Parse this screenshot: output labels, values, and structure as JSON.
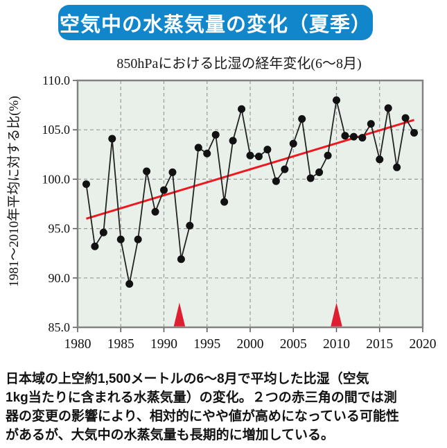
{
  "banner": {
    "text": "空気中の水蒸気量の変化（夏季）",
    "bg_color": "#1186cb",
    "text_color": "#ffffff"
  },
  "chart_data": {
    "type": "line",
    "title": "850hPaにおける比湿の経年変化(6～8月)",
    "ylabel": "1981～2010年平均に対する比(%)",
    "xlabel": "",
    "xlim": [
      1980,
      2020
    ],
    "ylim": [
      85.0,
      110.0
    ],
    "x_ticks": [
      1980,
      1985,
      1990,
      1995,
      2000,
      2005,
      2010,
      2015,
      2020
    ],
    "y_ticks": [
      85.0,
      90.0,
      95.0,
      100.0,
      105.0,
      110.0
    ],
    "grid": true,
    "legend": "none",
    "series": [
      {
        "name": "specific-humidity-ratio",
        "x": [
          1981,
          1982,
          1983,
          1984,
          1985,
          1986,
          1987,
          1988,
          1989,
          1990,
          1991,
          1992,
          1993,
          1994,
          1995,
          1996,
          1997,
          1998,
          1999,
          2000,
          2001,
          2002,
          2003,
          2004,
          2005,
          2006,
          2007,
          2008,
          2009,
          2010,
          2011,
          2012,
          2013,
          2014,
          2015,
          2016,
          2017,
          2018,
          2019
        ],
        "values": [
          99.5,
          93.2,
          94.6,
          104.1,
          93.9,
          89.4,
          93.9,
          100.8,
          96.7,
          98.9,
          100.7,
          91.9,
          95.3,
          103.2,
          102.6,
          104.5,
          97.7,
          103.9,
          107.1,
          102.4,
          102.3,
          103.0,
          99.8,
          101.0,
          103.6,
          106.1,
          100.1,
          100.7,
          102.4,
          108.0,
          104.4,
          104.3,
          104.2,
          105.6,
          102.0,
          107.2,
          101.2,
          106.2,
          104.7
        ]
      }
    ],
    "trend_line": {
      "x": [
        1981,
        2019
      ],
      "values": [
        96.0,
        106.0
      ],
      "color": "#ef1820"
    },
    "markers": {
      "shape": "triangle-up",
      "meaning": "red triangles marking instrument-change period boundaries",
      "x": [
        1991.8,
        2010.0
      ],
      "apex_value": 87.5,
      "base_value": 85.1,
      "color": "#dd1f31"
    },
    "colors": {
      "point": "#111111",
      "line": "#222222",
      "plot_bg": "#e9f0e9",
      "grid": "#9a9a9a",
      "border": "#828282",
      "tick": "#555555",
      "label": "#111111"
    }
  },
  "caption": {
    "lines": [
      "日本域の上空約1,500メートルの6～8月で平均した比湿（空気",
      "1kg当たりに含まれる水蒸気量）の変化。２つの赤三角の間では測",
      "器の変更の影響により、相対的にやや値が高めになっている可能性",
      "があるが、大気中の水蒸気量も長期的に増加している。"
    ]
  }
}
